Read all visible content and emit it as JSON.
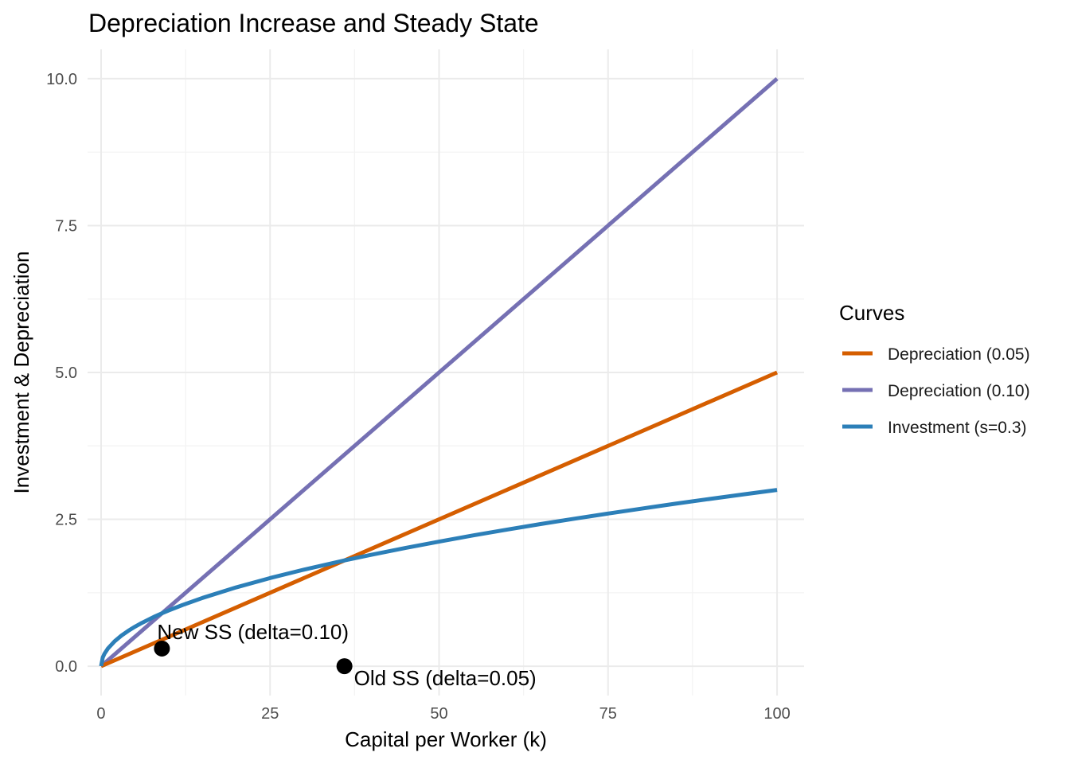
{
  "chart_data": {
    "type": "line",
    "title": "Depreciation Increase and Steady State",
    "xlabel": "Capital per Worker (k)",
    "ylabel": "Investment & Depreciation",
    "xlim": [
      -2,
      104
    ],
    "ylim": [
      -0.5,
      10.5
    ],
    "x_ticks": [
      0,
      25,
      50,
      75,
      100
    ],
    "x_tick_labels": [
      "0",
      "25",
      "50",
      "75",
      "100"
    ],
    "y_ticks": [
      0,
      2.5,
      5,
      7.5,
      10
    ],
    "y_tick_labels": [
      "0.0",
      "2.5",
      "5.0",
      "7.5",
      "10.0"
    ],
    "grid": true,
    "legend": {
      "title": "Curves",
      "placement": "right"
    },
    "series": [
      {
        "name": "Depreciation (0.05)",
        "color": "#D55E00",
        "x": [
          0,
          100
        ],
        "y": [
          0,
          5
        ]
      },
      {
        "name": "Depreciation (0.10)",
        "color": "#7570B3",
        "x": [
          0,
          100
        ],
        "y": [
          0,
          10
        ]
      },
      {
        "name": "Investment (s=0.3)",
        "color": "#2C7FB8",
        "x": [
          0,
          0.25,
          0.5,
          1,
          2,
          3,
          4,
          5,
          6,
          8,
          9,
          10,
          12,
          15,
          20,
          25,
          30,
          36,
          40,
          45,
          50,
          55,
          60,
          65,
          70,
          75,
          80,
          85,
          90,
          95,
          100
        ],
        "y": [
          0,
          0.15,
          0.212,
          0.3,
          0.424,
          0.52,
          0.6,
          0.671,
          0.735,
          0.849,
          0.9,
          0.949,
          1.039,
          1.162,
          1.342,
          1.5,
          1.643,
          1.8,
          1.897,
          2.012,
          2.121,
          2.225,
          2.324,
          2.419,
          2.51,
          2.598,
          2.683,
          2.766,
          2.846,
          2.924,
          3.0
        ]
      }
    ],
    "points": [
      {
        "label": "New SS (delta=0.10)",
        "x": 9,
        "y": 0.3,
        "color": "#000000"
      },
      {
        "label": "Old SS (delta=0.05)",
        "x": 36,
        "y": 0,
        "color": "#000000"
      }
    ]
  }
}
